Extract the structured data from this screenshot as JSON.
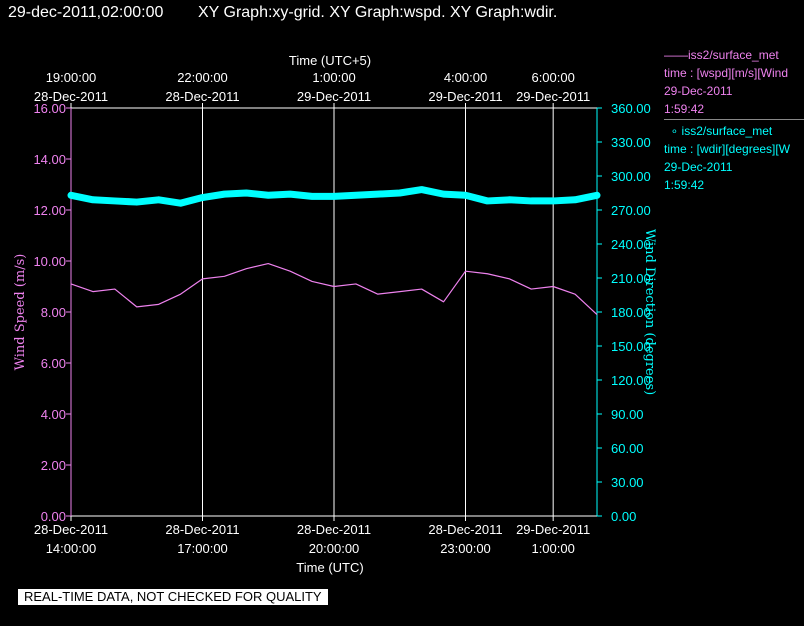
{
  "header": {
    "timestamp": "29-dec-2011,02:00:00",
    "title": "XY Graph:xy-grid.  XY Graph:wspd.  XY Graph:wdir."
  },
  "legend": [
    {
      "marker": "line",
      "name": "iss2/surface_met",
      "detail": "time : [wspd][m/s][Wind",
      "date": "29-Dec-2011",
      "time": "1:59:42"
    },
    {
      "marker": "circle",
      "name": "iss2/surface_met",
      "detail": "time : [wdir][degrees][W",
      "date": "29-Dec-2011",
      "time": "1:59:42"
    }
  ],
  "notice": "REAL-TIME DATA, NOT CHECKED FOR QUALITY",
  "colors": {
    "wspd": "#ee82ee",
    "wdir": "#00ffff",
    "grid": "#ffffff",
    "background": "#000000"
  },
  "chart_data": {
    "type": "line",
    "title": "",
    "xlabel": "Time (UTC)",
    "x2label": "Time (UTC+5)",
    "ylabel": "Wind Speed (m/s)",
    "y2label": "Wind Direction (degrees)",
    "xlim": [
      "2011-12-28 14:00",
      "2011-12-29 02:00"
    ],
    "ylim": [
      0,
      16
    ],
    "y2lim": [
      0,
      360
    ],
    "grid": true,
    "yticks": [
      "0.00",
      "2.00",
      "4.00",
      "6.00",
      "8.00",
      "10.00",
      "12.00",
      "14.00",
      "16.00"
    ],
    "y2ticks": [
      "0.00",
      "30.00",
      "60.00",
      "90.00",
      "120.00",
      "150.00",
      "180.00",
      "210.00",
      "240.00",
      "270.00",
      "300.00",
      "330.00",
      "360.00"
    ],
    "xticks_bottom": [
      {
        "t": "2011-12-28 14:00",
        "date": "28-Dec-2011",
        "time": "14:00:00"
      },
      {
        "t": "2011-12-28 17:00",
        "date": "28-Dec-2011",
        "time": "17:00:00"
      },
      {
        "t": "2011-12-28 20:00",
        "date": "28-Dec-2011",
        "time": "20:00:00"
      },
      {
        "t": "2011-12-28 23:00",
        "date": "28-Dec-2011",
        "time": "23:00:00"
      },
      {
        "t": "2011-12-29 01:00",
        "date": "29-Dec-2011",
        "time": "1:00:00"
      }
    ],
    "xticks_top": [
      {
        "t": "2011-12-28 14:00",
        "time": "19:00:00",
        "date": "28-Dec-2011"
      },
      {
        "t": "2011-12-28 17:00",
        "time": "22:00:00",
        "date": "28-Dec-2011"
      },
      {
        "t": "2011-12-28 20:00",
        "time": "1:00:00",
        "date": "29-Dec-2011"
      },
      {
        "t": "2011-12-28 23:00",
        "time": "4:00:00",
        "date": "29-Dec-2011"
      },
      {
        "t": "2011-12-29 01:00",
        "time": "6:00:00",
        "date": "29-Dec-2011"
      }
    ],
    "series": [
      {
        "name": "wspd",
        "axis": "left",
        "style": "line",
        "x": [
          "2011-12-28 14:00",
          "2011-12-28 14:30",
          "2011-12-28 15:00",
          "2011-12-28 15:30",
          "2011-12-28 16:00",
          "2011-12-28 16:30",
          "2011-12-28 17:00",
          "2011-12-28 17:30",
          "2011-12-28 18:00",
          "2011-12-28 18:30",
          "2011-12-28 19:00",
          "2011-12-28 19:30",
          "2011-12-28 20:00",
          "2011-12-28 20:30",
          "2011-12-28 21:00",
          "2011-12-28 21:30",
          "2011-12-28 22:00",
          "2011-12-28 22:30",
          "2011-12-28 23:00",
          "2011-12-28 23:30",
          "2011-12-29 00:00",
          "2011-12-29 00:30",
          "2011-12-29 01:00",
          "2011-12-29 01:30",
          "2011-12-29 02:00"
        ],
        "values": [
          9.1,
          8.8,
          8.9,
          8.2,
          8.3,
          8.7,
          9.3,
          9.4,
          9.7,
          9.9,
          9.6,
          9.2,
          9.0,
          9.1,
          8.7,
          8.8,
          8.9,
          8.4,
          9.6,
          9.5,
          9.3,
          8.9,
          9.0,
          8.7,
          7.9
        ]
      },
      {
        "name": "wdir",
        "axis": "right",
        "style": "circles",
        "x": [
          "2011-12-28 14:00",
          "2011-12-28 14:30",
          "2011-12-28 15:00",
          "2011-12-28 15:30",
          "2011-12-28 16:00",
          "2011-12-28 16:30",
          "2011-12-28 17:00",
          "2011-12-28 17:30",
          "2011-12-28 18:00",
          "2011-12-28 18:30",
          "2011-12-28 19:00",
          "2011-12-28 19:30",
          "2011-12-28 20:00",
          "2011-12-28 20:30",
          "2011-12-28 21:00",
          "2011-12-28 21:30",
          "2011-12-28 22:00",
          "2011-12-28 22:30",
          "2011-12-28 23:00",
          "2011-12-28 23:30",
          "2011-12-29 00:00",
          "2011-12-29 00:30",
          "2011-12-29 01:00",
          "2011-12-29 01:30",
          "2011-12-29 02:00"
        ],
        "values": [
          283,
          279,
          278,
          277,
          279,
          276,
          281,
          284,
          285,
          283,
          284,
          282,
          282,
          283,
          284,
          285,
          288,
          284,
          283,
          278,
          279,
          278,
          278,
          279,
          283
        ]
      }
    ]
  }
}
